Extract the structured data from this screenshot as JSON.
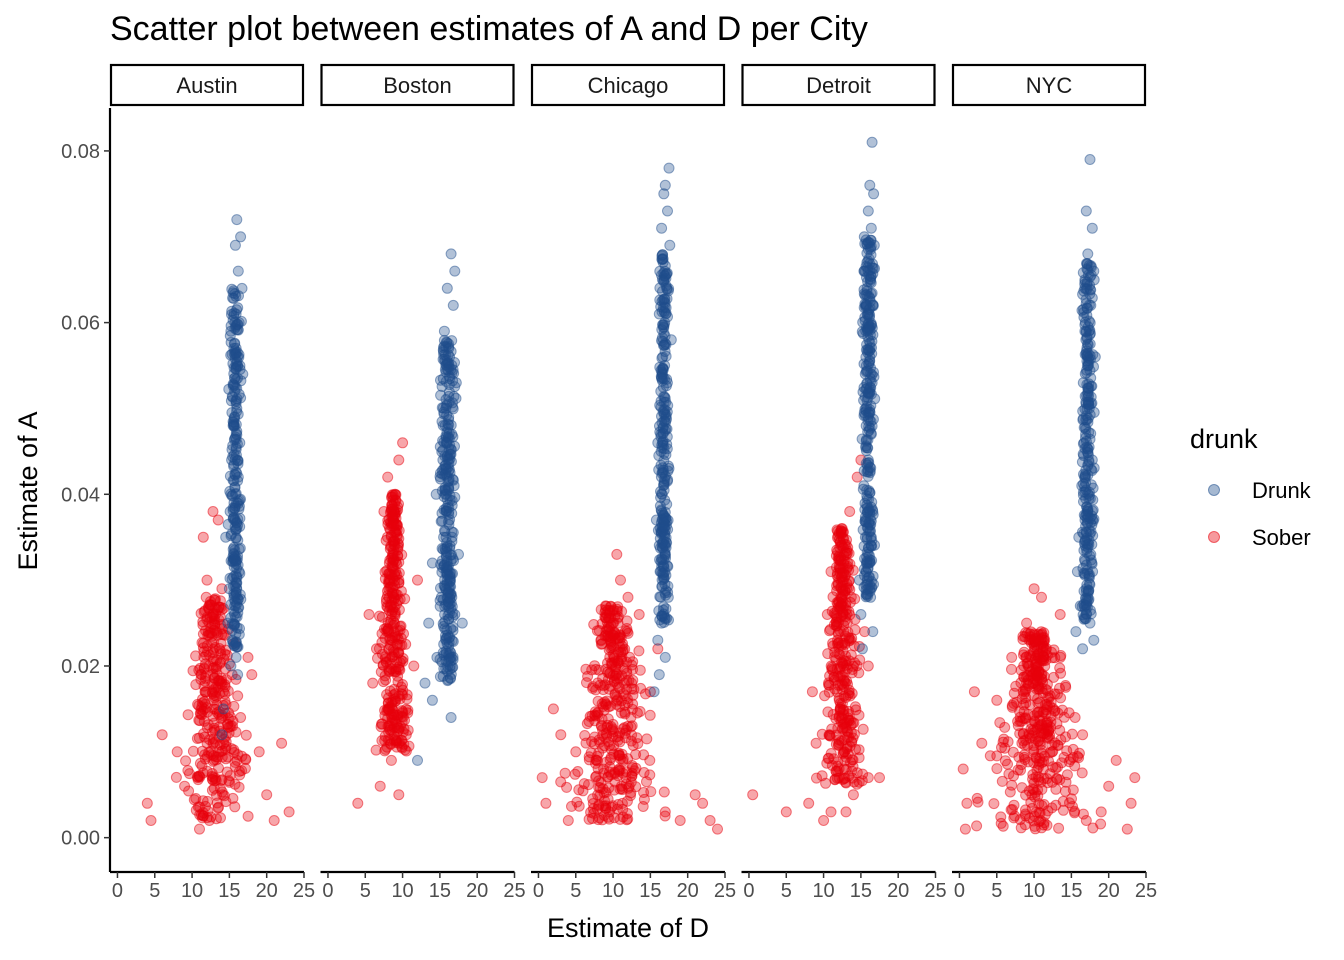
{
  "chart_data": {
    "type": "scatter",
    "title": "Scatter plot between estimates of A and D per City",
    "xlabel": "Estimate of D",
    "ylabel": "Estimate of A",
    "xlim": [
      -1,
      25
    ],
    "ylim": [
      -0.004,
      0.085
    ],
    "x_ticks": [
      0,
      5,
      10,
      15,
      20,
      25
    ],
    "x_tick_labels": [
      "0",
      "5",
      "10",
      "15",
      "20",
      "25"
    ],
    "y_ticks": [
      0.0,
      0.02,
      0.04,
      0.06,
      0.08
    ],
    "y_tick_labels": [
      "0.00",
      "0.02",
      "0.04",
      "0.06",
      "0.08"
    ],
    "grid": false,
    "legend": {
      "title": "drunk",
      "placement": "right",
      "entries": [
        {
          "name": "Drunk",
          "color": "#1f4e8c"
        },
        {
          "name": "Sober",
          "color": "#e8000b"
        }
      ]
    },
    "point_opacity": 0.35,
    "facets": [
      {
        "name": "Austin",
        "drunk_points": [
          [
            16.0,
            0.072
          ],
          [
            16.5,
            0.07
          ],
          [
            15.8,
            0.069
          ],
          [
            16.2,
            0.066
          ],
          [
            16.8,
            0.054
          ],
          [
            15.2,
            0.059
          ],
          [
            15.9,
            0.061
          ],
          [
            16.3,
            0.06
          ],
          [
            15.6,
            0.057
          ],
          [
            16.1,
            0.055
          ],
          [
            15.7,
            0.052
          ],
          [
            16.0,
            0.05
          ],
          [
            15.5,
            0.048
          ],
          [
            16.4,
            0.046
          ],
          [
            15.3,
            0.044
          ],
          [
            16.2,
            0.042
          ],
          [
            15.8,
            0.04
          ],
          [
            15.1,
            0.038
          ],
          [
            16.0,
            0.036
          ],
          [
            14.5,
            0.035
          ],
          [
            15.6,
            0.033
          ],
          [
            16.3,
            0.031
          ],
          [
            15.0,
            0.029
          ],
          [
            15.7,
            0.027
          ],
          [
            14.8,
            0.025
          ],
          [
            15.4,
            0.023
          ],
          [
            15.9,
            0.021
          ],
          [
            15.2,
            0.02
          ],
          [
            16.1,
            0.019
          ],
          [
            14.2,
            0.015
          ],
          [
            14.0,
            0.012
          ]
        ],
        "drunk_cluster": {
          "x_center": 15.8,
          "x_spread": 0.6,
          "y_min": 0.022,
          "y_max": 0.064,
          "n": 240
        },
        "sober_points": [
          [
            4.0,
            0.004
          ],
          [
            4.5,
            0.002
          ],
          [
            6.0,
            0.012
          ],
          [
            11.5,
            0.035
          ],
          [
            12.0,
            0.03
          ],
          [
            13.5,
            0.037
          ],
          [
            12.8,
            0.038
          ],
          [
            14.0,
            0.029
          ],
          [
            18.0,
            0.019
          ],
          [
            19.0,
            0.01
          ],
          [
            22.0,
            0.011
          ],
          [
            23.0,
            0.003
          ],
          [
            21.0,
            0.002
          ],
          [
            11.0,
            0.001
          ],
          [
            8.0,
            0.01
          ],
          [
            9.0,
            0.006
          ],
          [
            17.5,
            0.021
          ],
          [
            16.5,
            0.014
          ],
          [
            20.0,
            0.005
          ]
        ],
        "sober_cluster": {
          "x_center": 13.0,
          "x_spread": 2.6,
          "y_min": 0.002,
          "y_max": 0.028,
          "n": 320
        }
      },
      {
        "name": "Boston",
        "drunk_points": [
          [
            16.5,
            0.068
          ],
          [
            17.0,
            0.066
          ],
          [
            16.0,
            0.064
          ],
          [
            16.8,
            0.062
          ],
          [
            15.6,
            0.059
          ],
          [
            16.3,
            0.056
          ],
          [
            17.2,
            0.053
          ],
          [
            15.8,
            0.05
          ],
          [
            16.6,
            0.047
          ],
          [
            15.4,
            0.044
          ],
          [
            16.9,
            0.041
          ],
          [
            14.5,
            0.04
          ],
          [
            16.2,
            0.038
          ],
          [
            15.5,
            0.035
          ],
          [
            17.5,
            0.033
          ],
          [
            14.0,
            0.032
          ],
          [
            16.0,
            0.03
          ],
          [
            15.2,
            0.028
          ],
          [
            17.0,
            0.026
          ],
          [
            13.5,
            0.025
          ],
          [
            15.8,
            0.023
          ],
          [
            14.6,
            0.021
          ],
          [
            16.4,
            0.02
          ],
          [
            13.0,
            0.018
          ],
          [
            14.0,
            0.016
          ],
          [
            16.5,
            0.014
          ],
          [
            12.0,
            0.009
          ],
          [
            18.0,
            0.025
          ]
        ],
        "drunk_cluster": {
          "x_center": 16.0,
          "x_spread": 0.8,
          "y_min": 0.018,
          "y_max": 0.058,
          "n": 300
        },
        "sober_points": [
          [
            10.0,
            0.046
          ],
          [
            9.5,
            0.044
          ],
          [
            8.0,
            0.042
          ],
          [
            9.0,
            0.04
          ],
          [
            4.0,
            0.004
          ],
          [
            7.0,
            0.006
          ],
          [
            9.5,
            0.005
          ],
          [
            6.0,
            0.018
          ],
          [
            5.5,
            0.026
          ],
          [
            11.5,
            0.02
          ],
          [
            10.5,
            0.012
          ],
          [
            8.5,
            0.009
          ],
          [
            7.5,
            0.038
          ],
          [
            6.5,
            0.022
          ],
          [
            12.0,
            0.03
          ]
        ],
        "sober_cluster": {
          "x_center": 8.8,
          "x_spread": 1.2,
          "y_min": 0.01,
          "y_max": 0.04,
          "n": 340
        }
      },
      {
        "name": "Chicago",
        "drunk_points": [
          [
            17.5,
            0.078
          ],
          [
            17.0,
            0.076
          ],
          [
            16.8,
            0.075
          ],
          [
            17.3,
            0.073
          ],
          [
            16.5,
            0.071
          ],
          [
            17.6,
            0.069
          ],
          [
            16.7,
            0.067
          ],
          [
            17.2,
            0.064
          ],
          [
            16.2,
            0.061
          ],
          [
            17.8,
            0.058
          ],
          [
            16.9,
            0.055
          ],
          [
            16.4,
            0.052
          ],
          [
            17.1,
            0.049
          ],
          [
            16.0,
            0.046
          ],
          [
            17.5,
            0.043
          ],
          [
            16.6,
            0.04
          ],
          [
            15.8,
            0.037
          ],
          [
            17.0,
            0.034
          ],
          [
            16.3,
            0.031
          ],
          [
            17.4,
            0.028
          ],
          [
            16.5,
            0.025
          ],
          [
            16.0,
            0.023
          ],
          [
            17.0,
            0.021
          ],
          [
            16.2,
            0.019
          ],
          [
            15.5,
            0.017
          ]
        ],
        "drunk_cluster": {
          "x_center": 16.8,
          "x_spread": 0.5,
          "y_min": 0.025,
          "y_max": 0.068,
          "n": 260
        },
        "sober_points": [
          [
            10.5,
            0.033
          ],
          [
            11.0,
            0.03
          ],
          [
            12.0,
            0.028
          ],
          [
            9.0,
            0.027
          ],
          [
            13.5,
            0.026
          ],
          [
            2.0,
            0.015
          ],
          [
            0.5,
            0.007
          ],
          [
            1.0,
            0.004
          ],
          [
            3.0,
            0.012
          ],
          [
            22.0,
            0.004
          ],
          [
            23.0,
            0.002
          ],
          [
            24.0,
            0.001
          ],
          [
            21.0,
            0.005
          ],
          [
            19.0,
            0.002
          ],
          [
            17.0,
            0.003
          ],
          [
            15.0,
            0.017
          ],
          [
            16.0,
            0.022
          ],
          [
            5.0,
            0.01
          ],
          [
            4.0,
            0.002
          ]
        ],
        "sober_cluster": {
          "x_center": 10.0,
          "x_spread": 3.2,
          "y_min": 0.002,
          "y_max": 0.027,
          "n": 380
        }
      },
      {
        "name": "Detroit",
        "drunk_points": [
          [
            16.5,
            0.081
          ],
          [
            16.2,
            0.076
          ],
          [
            16.7,
            0.075
          ],
          [
            16.0,
            0.073
          ],
          [
            16.4,
            0.071
          ],
          [
            16.8,
            0.069
          ],
          [
            15.8,
            0.067
          ],
          [
            16.3,
            0.065
          ],
          [
            16.6,
            0.062
          ],
          [
            15.9,
            0.059
          ],
          [
            16.2,
            0.056
          ],
          [
            16.5,
            0.053
          ],
          [
            15.7,
            0.05
          ],
          [
            16.4,
            0.047
          ],
          [
            16.0,
            0.044
          ],
          [
            15.4,
            0.041
          ],
          [
            16.6,
            0.038
          ],
          [
            15.6,
            0.035
          ],
          [
            16.1,
            0.032
          ],
          [
            14.8,
            0.03
          ],
          [
            16.3,
            0.028
          ],
          [
            15.0,
            0.026
          ],
          [
            16.6,
            0.024
          ],
          [
            15.2,
            0.022
          ]
        ],
        "drunk_cluster": {
          "x_center": 16.0,
          "x_spread": 0.6,
          "y_min": 0.028,
          "y_max": 0.07,
          "n": 280
        },
        "sober_points": [
          [
            15.0,
            0.044
          ],
          [
            14.5,
            0.042
          ],
          [
            13.5,
            0.038
          ],
          [
            12.5,
            0.036
          ],
          [
            0.5,
            0.005
          ],
          [
            5.0,
            0.003
          ],
          [
            8.0,
            0.004
          ],
          [
            10.0,
            0.002
          ],
          [
            11.0,
            0.003
          ],
          [
            13.0,
            0.003
          ],
          [
            14.0,
            0.005
          ],
          [
            16.0,
            0.007
          ],
          [
            17.5,
            0.007
          ],
          [
            8.5,
            0.017
          ],
          [
            9.0,
            0.011
          ],
          [
            15.5,
            0.024
          ],
          [
            16.0,
            0.02
          ],
          [
            10.5,
            0.026
          ],
          [
            11.0,
            0.031
          ]
        ],
        "sober_cluster": {
          "x_center": 12.5,
          "x_spread": 1.5,
          "y_min": 0.006,
          "y_max": 0.036,
          "n": 340
        }
      },
      {
        "name": "NYC",
        "drunk_points": [
          [
            17.5,
            0.079
          ],
          [
            17.0,
            0.073
          ],
          [
            17.8,
            0.071
          ],
          [
            17.2,
            0.068
          ],
          [
            18.0,
            0.066
          ],
          [
            16.8,
            0.064
          ],
          [
            17.6,
            0.062
          ],
          [
            17.0,
            0.059
          ],
          [
            18.2,
            0.056
          ],
          [
            16.6,
            0.053
          ],
          [
            17.4,
            0.05
          ],
          [
            16.9,
            0.047
          ],
          [
            17.8,
            0.044
          ],
          [
            16.4,
            0.041
          ],
          [
            17.2,
            0.038
          ],
          [
            16.0,
            0.035
          ],
          [
            17.6,
            0.033
          ],
          [
            15.8,
            0.031
          ],
          [
            17.0,
            0.029
          ],
          [
            16.2,
            0.027
          ],
          [
            17.5,
            0.025
          ],
          [
            15.6,
            0.024
          ],
          [
            18.0,
            0.023
          ],
          [
            16.5,
            0.022
          ]
        ],
        "drunk_cluster": {
          "x_center": 17.2,
          "x_spread": 0.6,
          "y_min": 0.025,
          "y_max": 0.067,
          "n": 260
        },
        "sober_points": [
          [
            10.0,
            0.029
          ],
          [
            11.0,
            0.028
          ],
          [
            13.5,
            0.026
          ],
          [
            9.0,
            0.025
          ],
          [
            2.0,
            0.017
          ],
          [
            0.5,
            0.008
          ],
          [
            1.0,
            0.004
          ],
          [
            0.8,
            0.001
          ],
          [
            3.0,
            0.011
          ],
          [
            5.0,
            0.016
          ],
          [
            23.5,
            0.007
          ],
          [
            23.0,
            0.004
          ],
          [
            22.5,
            0.001
          ],
          [
            21.0,
            0.009
          ],
          [
            20.0,
            0.006
          ],
          [
            19.0,
            0.003
          ],
          [
            17.0,
            0.002
          ],
          [
            15.5,
            0.014
          ],
          [
            16.5,
            0.012
          ],
          [
            7.0,
            0.021
          ]
        ],
        "sober_cluster": {
          "x_center": 10.5,
          "x_spread": 3.6,
          "y_min": 0.001,
          "y_max": 0.024,
          "n": 400
        }
      }
    ]
  }
}
